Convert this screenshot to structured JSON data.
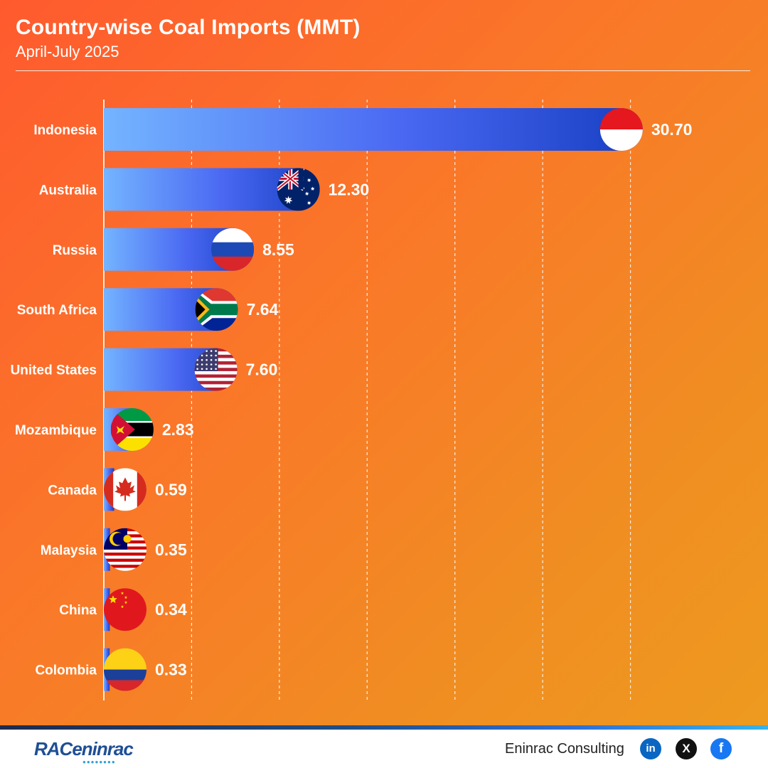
{
  "header": {
    "title": "Country-wise Coal Imports (MMT)",
    "subtitle": "April-July 2025"
  },
  "chart_data": {
    "type": "bar",
    "orientation": "horizontal",
    "categories": [
      "Indonesia",
      "Australia",
      "Russia",
      "South Africa",
      "United States",
      "Mozambique",
      "Canada",
      "Malaysia",
      "China",
      "Colombia"
    ],
    "values": [
      30.7,
      12.3,
      8.55,
      7.64,
      7.6,
      2.83,
      0.59,
      0.35,
      0.34,
      0.33
    ],
    "value_labels": [
      "30.70",
      "12.30",
      "8.55",
      "7.64",
      "7.60",
      "2.83",
      "0.59",
      "0.35",
      "0.34",
      "0.33"
    ],
    "title": "Country-wise Coal Imports (MMT)",
    "subtitle": "April-July 2025",
    "xlim": [
      0,
      35
    ],
    "grid": true,
    "legend": "none",
    "bar_gradient": [
      "#74b4ff",
      "#4a68f2",
      "#173fc3"
    ],
    "flag_icons": [
      "indonesia-flag-icon",
      "australia-flag-icon",
      "russia-flag-icon",
      "south-africa-flag-icon",
      "united-states-flag-icon",
      "mozambique-flag-icon",
      "canada-flag-icon",
      "malaysia-flag-icon",
      "china-flag-icon",
      "colombia-flag-icon"
    ]
  },
  "footer": {
    "logo_text": "RACeninrac",
    "company": "Eninrac Consulting",
    "social": [
      {
        "icon": "linkedin-icon",
        "glyph": "in"
      },
      {
        "icon": "x-icon",
        "glyph": "X"
      },
      {
        "icon": "facebook-icon",
        "glyph": "f"
      }
    ]
  },
  "colors": {
    "background_start": "#ff5a2e",
    "background_end": "#ee9a1f",
    "text": "#ffffff",
    "footer_bg": "#ffffff",
    "brand_blue": "#1f4f95"
  }
}
